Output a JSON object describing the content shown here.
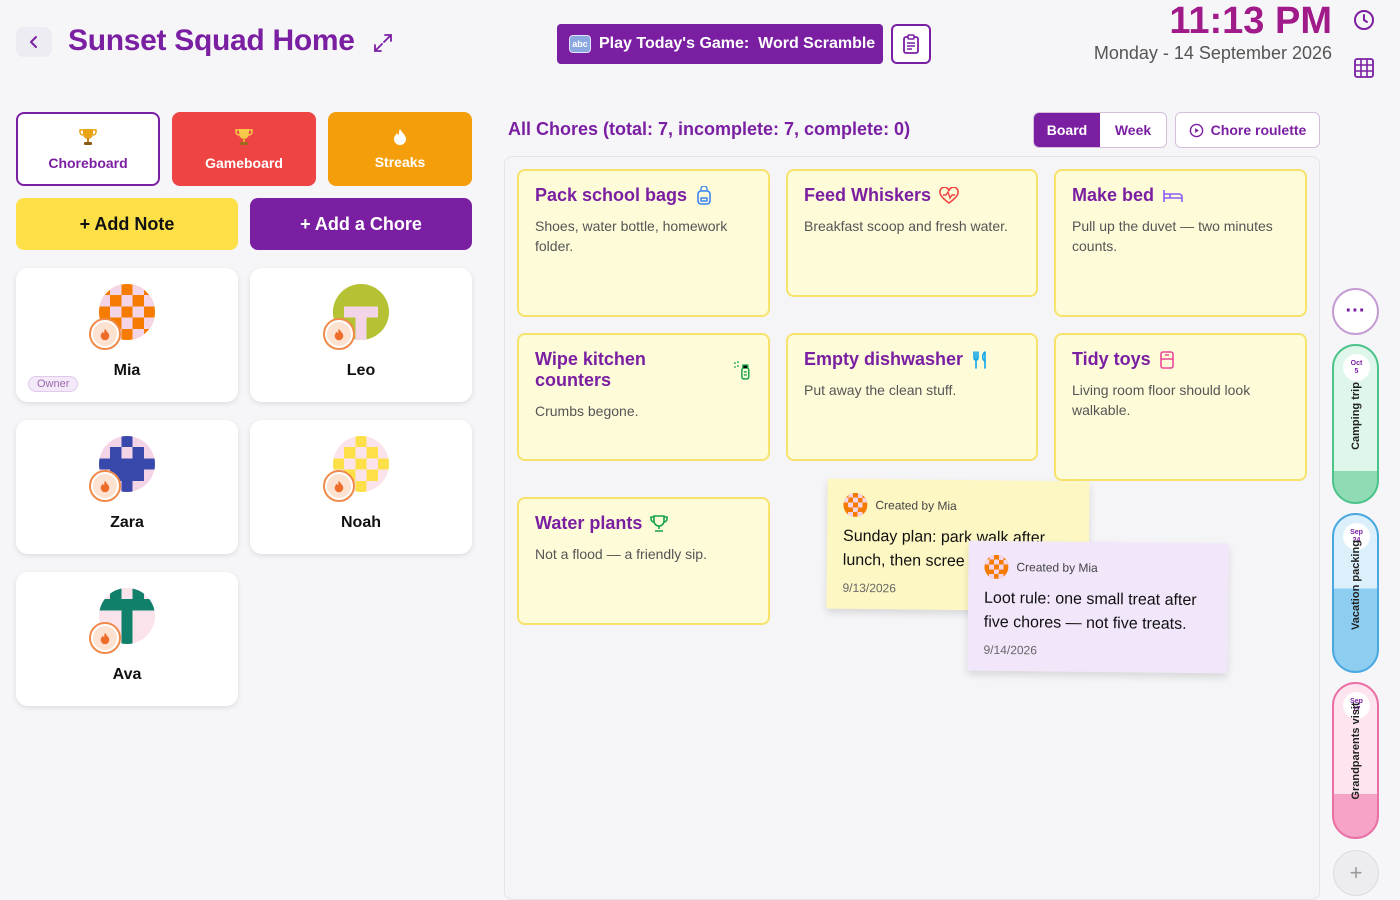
{
  "header": {
    "title": "Sunset Squad Home",
    "game_label": "Play Today's Game:  Word Scramble",
    "game_icon_text": "abc",
    "time": "11:13 PM",
    "date": "Monday - 14 September 2026"
  },
  "tabs": [
    {
      "label": "Choreboard",
      "icon": "trophy-icon"
    },
    {
      "label": "Gameboard",
      "icon": "trophy-icon"
    },
    {
      "label": "Streaks",
      "icon": "flame-icon"
    }
  ],
  "actions": {
    "add_note": "+ Add Note",
    "add_chore": "+ Add a Chore"
  },
  "members": [
    {
      "name": "Mia",
      "badge": "Owner"
    },
    {
      "name": "Leo"
    },
    {
      "name": "Zara"
    },
    {
      "name": "Noah"
    },
    {
      "name": "Ava"
    }
  ],
  "chores_header": {
    "summary": "All Chores (total: 7, incomplete: 7, complete: 0)",
    "view_board": "Board",
    "view_week": "Week",
    "roulette": "Chore roulette"
  },
  "chores": [
    {
      "title": "Pack school bags",
      "desc": "Shoes, water bottle, homework folder.",
      "icon": "backpack-icon"
    },
    {
      "title": "Feed Whiskers",
      "desc": "Breakfast scoop and fresh water.",
      "icon": "heart-pulse-icon"
    },
    {
      "title": "Make bed",
      "desc": "Pull up the duvet — two minutes counts.",
      "icon": "bed-icon"
    },
    {
      "title": "Wipe kitchen counters",
      "desc": "Crumbs begone.",
      "icon": "spray-bottle-icon"
    },
    {
      "title": "Empty dishwasher",
      "desc": "Put away the clean stuff.",
      "icon": "utensils-icon"
    },
    {
      "title": "Tidy toys",
      "desc": "Living room floor should look walkable.",
      "icon": "toy-box-icon"
    },
    {
      "title": "Water plants",
      "desc": "Not a flood — a friendly sip.",
      "icon": "trophy-icon"
    }
  ],
  "notes": [
    {
      "creator": "Created by Mia",
      "body": "Sunday plan: park walk after lunch, then scree",
      "date": "9/13/2026"
    },
    {
      "creator": "Created by Mia",
      "body": "Loot rule: one small treat after five chores — not five treats.",
      "date": "9/14/2026"
    }
  ],
  "events": [
    {
      "month": "Oct",
      "day": "5",
      "label": "Camping trip",
      "progress": 0.2
    },
    {
      "month": "Sep",
      "day": "24",
      "label": "Vacation packing",
      "progress": 0.53
    },
    {
      "month": "Sep",
      "day": "17",
      "label": "Grandparents visit",
      "progress": 0.28
    }
  ],
  "colors": {
    "brand_purple": "#7b1fa2",
    "time_magenta": "#a01a8a",
    "gameboard_red": "#ef4444",
    "streaks_orange": "#f59e0b",
    "note_yellow": "#fde047",
    "chore_card_bg": "#fefbd8"
  }
}
